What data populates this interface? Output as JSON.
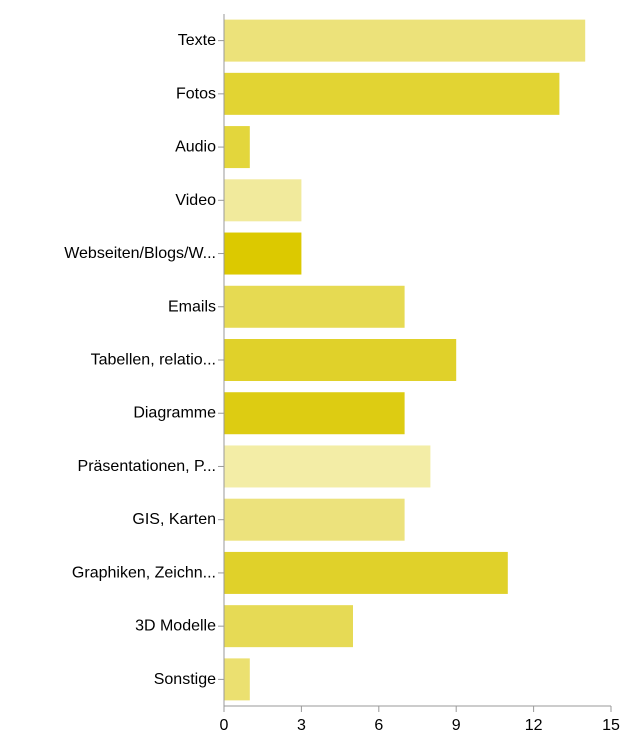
{
  "chart_data": {
    "type": "bar",
    "orientation": "horizontal",
    "title": "",
    "xlabel": "",
    "ylabel": "",
    "categories": [
      "Texte",
      "Fotos",
      "Audio",
      "Video",
      "Webseiten/Blogs/W...",
      "Emails",
      "Tabellen, relatio...",
      "Diagramme",
      "Präsentationen, P...",
      "GIS, Karten",
      "Graphiken, Zeichn...",
      "3D Modelle",
      "Sonstige"
    ],
    "values": [
      14,
      13,
      1,
      3,
      3,
      7,
      9,
      7,
      8,
      7,
      11,
      5,
      1
    ],
    "bar_colors": [
      "#ece27a",
      "#e2d433",
      "#e3d63c",
      "#f1ea9c",
      "#dcc900",
      "#e6da52",
      "#e0d12a",
      "#ddcc12",
      "#f3eda6",
      "#ece27c",
      "#e0d12a",
      "#e6da55",
      "#ebe070"
    ],
    "xlim": [
      0,
      15
    ],
    "xticks": [
      0,
      3,
      6,
      9,
      12,
      15
    ],
    "grid": false,
    "legend": "none",
    "axis_color": "#999999"
  }
}
